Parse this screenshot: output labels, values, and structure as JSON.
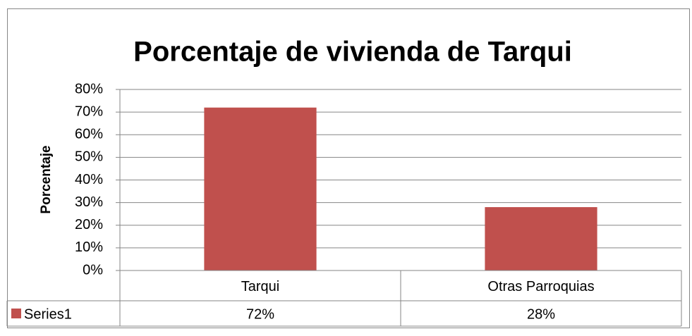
{
  "chart_data": {
    "type": "bar",
    "title": "Porcentaje de vivienda de Tarqui",
    "y_label": "Porcentaje",
    "categories": [
      "Tarqui",
      "Otras Parroquias"
    ],
    "series": [
      {
        "name": "Series1",
        "color": "#c0504d",
        "values": [
          72,
          28
        ],
        "value_labels": [
          "72%",
          "28%"
        ]
      }
    ],
    "ylim": [
      0,
      80
    ],
    "yticks": [
      {
        "value": 0,
        "label": "0%"
      },
      {
        "value": 10,
        "label": "10%"
      },
      {
        "value": 20,
        "label": "20%"
      },
      {
        "value": 30,
        "label": "30%"
      },
      {
        "value": 40,
        "label": "40%"
      },
      {
        "value": 50,
        "label": "50%"
      },
      {
        "value": 60,
        "label": "60%"
      },
      {
        "value": 70,
        "label": "70%"
      },
      {
        "value": 80,
        "label": "80%"
      }
    ],
    "grid": true,
    "data_table": true
  }
}
